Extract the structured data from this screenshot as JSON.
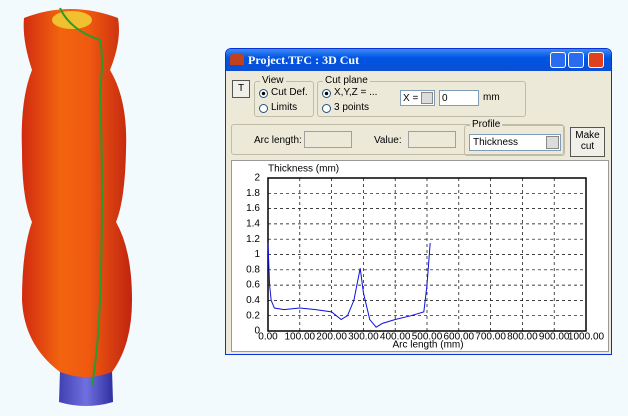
{
  "window": {
    "title": "Project.TFC : 3D Cut"
  },
  "controls": {
    "t_button": "T",
    "view": {
      "label": "View",
      "options": [
        "Cut Def.",
        "Limits"
      ]
    },
    "cut_plane": {
      "label": "Cut plane",
      "options": [
        "X,Y,Z = ...",
        "3 points"
      ],
      "axis": "X =",
      "value": "0",
      "unit": "mm"
    },
    "arc_length": "Arc length:",
    "value": "Value:",
    "profile": {
      "label": "Profile",
      "selected": "Thickness"
    },
    "make_cut": "Make cut"
  },
  "chart_data": {
    "type": "line",
    "y_label": "Thickness (mm)",
    "x_label": "Arc length (mm)",
    "x": [
      0,
      5,
      10,
      20,
      50,
      100,
      150,
      200,
      230,
      250,
      270,
      290,
      300,
      320,
      340,
      360,
      400,
      450,
      490,
      500,
      510
    ],
    "series": [
      {
        "name": "Thickness",
        "color": "#1010e0",
        "values": [
          1.15,
          0.6,
          0.4,
          0.3,
          0.28,
          0.3,
          0.28,
          0.25,
          0.15,
          0.2,
          0.4,
          0.82,
          0.5,
          0.15,
          0.05,
          0.1,
          0.15,
          0.2,
          0.25,
          0.6,
          1.15
        ]
      }
    ],
    "xlim": [
      0,
      1000
    ],
    "xticks": [
      {
        "value": 0,
        "label": "0.00"
      },
      {
        "value": 100,
        "label": "100.00"
      },
      {
        "value": 200,
        "label": "200.00"
      },
      {
        "value": 300,
        "label": "300.00"
      },
      {
        "value": 400,
        "label": "400.00"
      },
      {
        "value": 500,
        "label": "500.00"
      },
      {
        "value": 600,
        "label": "600.00"
      },
      {
        "value": 700,
        "label": "700.00"
      },
      {
        "value": 800,
        "label": "800.00"
      },
      {
        "value": 900,
        "label": "900.00"
      },
      {
        "value": 1000,
        "label": "1000.00"
      }
    ],
    "ylim": [
      0,
      2
    ],
    "yticks": [
      0,
      0.2,
      0.4,
      0.6,
      0.8,
      1,
      1.2,
      1.4,
      1.6,
      1.8,
      2
    ],
    "grid": true
  }
}
